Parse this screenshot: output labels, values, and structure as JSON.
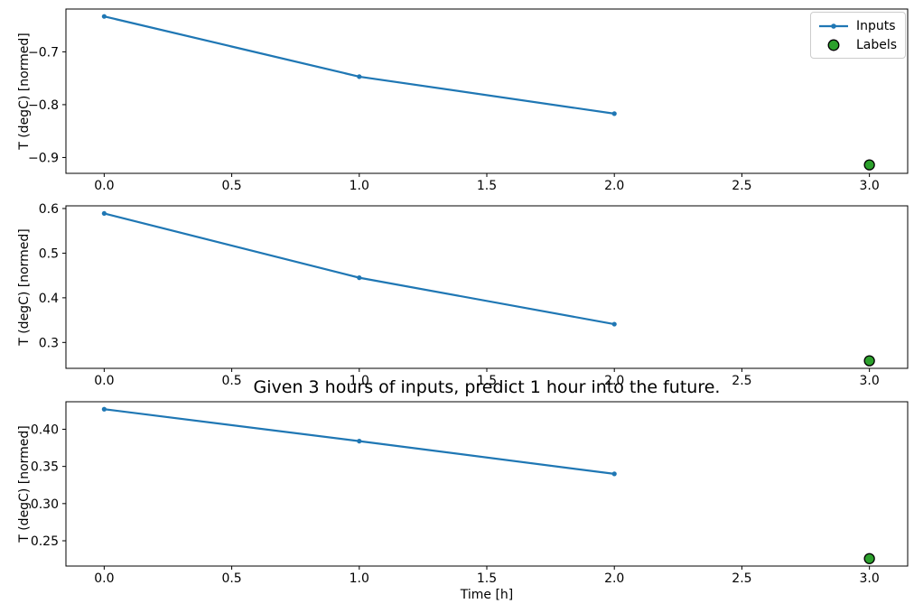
{
  "figure": {
    "title": "Given 3 hours of inputs, predict 1 hour into the future.",
    "xlabel": "Time [h]",
    "ylabel": "T (degC) [normed]",
    "background": "#ffffff"
  },
  "legend": {
    "position": "upper-right",
    "items": [
      {
        "label": "Inputs",
        "marker": "line-with-dot",
        "color": "#1f77b4"
      },
      {
        "label": "Labels",
        "marker": "circle",
        "color": "#2ca02c",
        "edge_color": "#000000"
      }
    ]
  },
  "colors": {
    "inputs": "#1f77b4",
    "labels_fill": "#2ca02c",
    "labels_edge": "#000000",
    "axis": "#000000",
    "legend_border": "#cccccc"
  },
  "chart_data": [
    {
      "type": "line",
      "subplot": 1,
      "ylabel": "T (degC) [normed]",
      "series": [
        {
          "name": "Inputs",
          "x": [
            0,
            1,
            2
          ],
          "y": [
            -0.633,
            -0.747,
            -0.817
          ],
          "style": "line+dot",
          "color": "#1f77b4"
        },
        {
          "name": "Labels",
          "x": [
            3
          ],
          "y": [
            -0.914
          ],
          "style": "circle",
          "color": "#2ca02c"
        }
      ],
      "xlim": [
        -0.15,
        3.15
      ],
      "ylim": [
        -0.93,
        -0.619
      ],
      "xticks": [
        0.0,
        0.5,
        1.0,
        1.5,
        2.0,
        2.5,
        3.0
      ],
      "xtick_labels": [
        "0.0",
        "0.5",
        "1.0",
        "1.5",
        "2.0",
        "2.5",
        "3.0"
      ],
      "yticks": [
        -0.7,
        -0.8,
        -0.9
      ],
      "ytick_labels": [
        "−0.7",
        "−0.8",
        "−0.9"
      ],
      "grid": false
    },
    {
      "type": "line",
      "subplot": 2,
      "ylabel": "T (degC) [normed]",
      "series": [
        {
          "name": "Inputs",
          "x": [
            0,
            1,
            2
          ],
          "y": [
            0.589,
            0.445,
            0.341
          ],
          "style": "line+dot",
          "color": "#1f77b4"
        },
        {
          "name": "Labels",
          "x": [
            3
          ],
          "y": [
            0.259
          ],
          "style": "circle",
          "color": "#2ca02c"
        }
      ],
      "xlim": [
        -0.15,
        3.15
      ],
      "ylim": [
        0.242,
        0.606
      ],
      "xticks": [
        0.0,
        0.5,
        1.0,
        1.5,
        2.0,
        2.5,
        3.0
      ],
      "xtick_labels": [
        "0.0",
        "0.5",
        "1.0",
        "1.5",
        "2.0",
        "2.5",
        "3.0"
      ],
      "yticks": [
        0.3,
        0.4,
        0.5,
        0.6
      ],
      "ytick_labels": [
        "0.3",
        "0.4",
        "0.5",
        "0.6"
      ],
      "grid": false
    },
    {
      "type": "line",
      "subplot": 3,
      "title": "Given 3 hours of inputs, predict 1 hour into the future.",
      "xlabel": "Time [h]",
      "ylabel": "T (degC) [normed]",
      "series": [
        {
          "name": "Inputs",
          "x": [
            0,
            1,
            2
          ],
          "y": [
            0.427,
            0.384,
            0.34
          ],
          "style": "line+dot",
          "color": "#1f77b4"
        },
        {
          "name": "Labels",
          "x": [
            3
          ],
          "y": [
            0.226
          ],
          "style": "circle",
          "color": "#2ca02c"
        }
      ],
      "xlim": [
        -0.15,
        3.15
      ],
      "ylim": [
        0.216,
        0.437
      ],
      "xticks": [
        0.0,
        0.5,
        1.0,
        1.5,
        2.0,
        2.5,
        3.0
      ],
      "xtick_labels": [
        "0.0",
        "0.5",
        "1.0",
        "1.5",
        "2.0",
        "2.5",
        "3.0"
      ],
      "yticks": [
        0.25,
        0.3,
        0.35,
        0.4
      ],
      "ytick_labels": [
        "0.25",
        "0.30",
        "0.35",
        "0.40"
      ],
      "grid": false
    }
  ]
}
